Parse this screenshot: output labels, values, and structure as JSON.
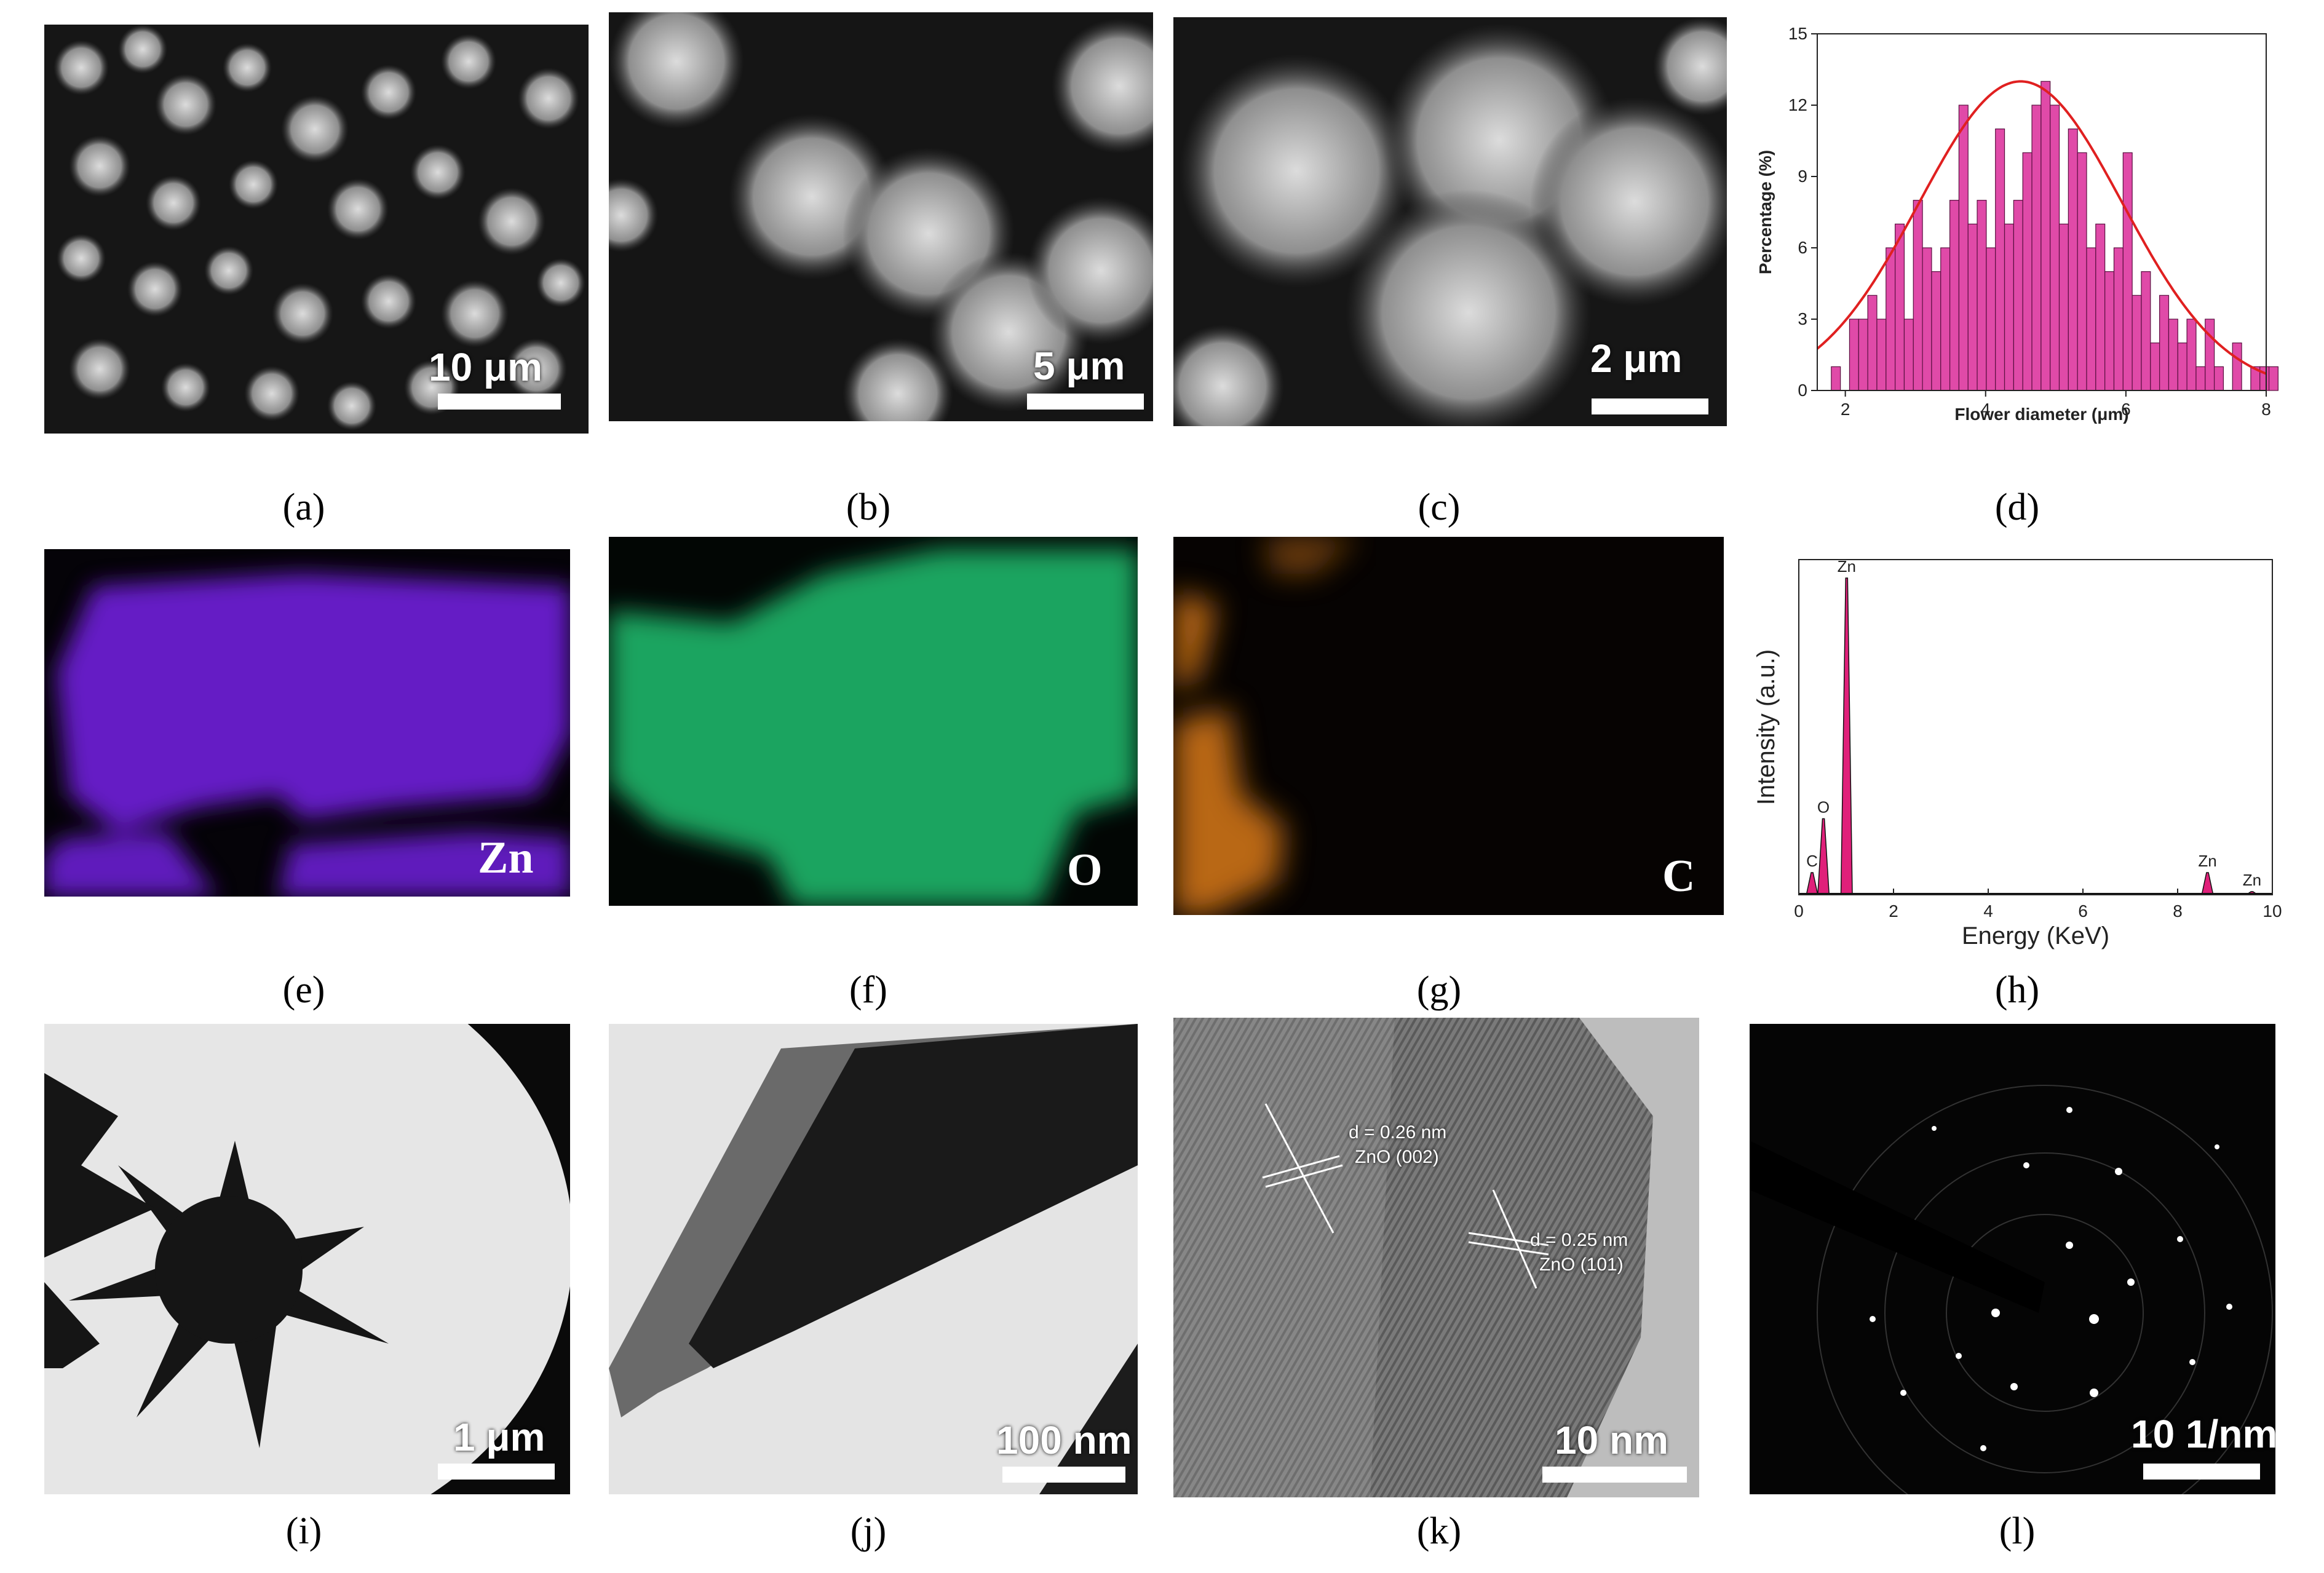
{
  "panels": {
    "a": {
      "caption": "(a)",
      "scale": "10 μm"
    },
    "b": {
      "caption": "(b)",
      "scale": "5 μm"
    },
    "c": {
      "caption": "(c)",
      "scale": "2 μm"
    },
    "d": {
      "caption": "(d)"
    },
    "e": {
      "caption": "(e)",
      "element": "Zn",
      "color": "#6a1fd0"
    },
    "f": {
      "caption": "(f)",
      "element": "O",
      "color": "#1fc070"
    },
    "g": {
      "caption": "(g)",
      "element": "C",
      "color": "#d97a18"
    },
    "h": {
      "caption": "(h)"
    },
    "i": {
      "caption": "(i)",
      "scale": "1 μm"
    },
    "j": {
      "caption": "(j)",
      "scale": "100 nm"
    },
    "k": {
      "caption": "(k)",
      "scale": "10 nm",
      "lattice1": "d = 0.26 nm",
      "plane1": "ZnO (002)",
      "lattice2": "d = 0.25 nm",
      "plane2": "ZnO (101)"
    },
    "l": {
      "caption": "(l)",
      "scale": "10 1/nm"
    }
  },
  "chart_data": [
    {
      "type": "bar",
      "panel": "d",
      "xlabel": "Flower diameter (μm)",
      "ylabel": "Percentage (%)",
      "xlim": [
        1.6,
        8.0
      ],
      "ylim": [
        0,
        15
      ],
      "xticks": [
        2,
        4,
        6,
        8
      ],
      "yticks": [
        0,
        3,
        6,
        9,
        12,
        15
      ],
      "bin_width": 0.13,
      "bin_start": 1.8,
      "values": [
        1,
        0,
        3,
        3,
        4,
        3,
        6,
        7,
        3,
        8,
        6,
        5,
        6,
        8,
        12,
        7,
        8,
        6,
        11,
        7,
        8,
        10,
        12,
        13,
        12,
        7,
        11,
        10,
        6,
        7,
        5,
        6,
        10,
        4,
        5,
        2,
        4,
        3,
        2,
        3,
        1,
        3,
        1,
        0,
        2,
        0,
        1,
        1,
        1
      ],
      "bar_color": "#e04aa8",
      "fit": {
        "type": "gaussian",
        "peak": 13,
        "center": 4.5,
        "sigma": 1.45,
        "color": "#e02020"
      }
    },
    {
      "type": "line",
      "panel": "h",
      "xlabel": "Energy (KeV)",
      "ylabel": "Intensity (a.u.)",
      "xlim": [
        0,
        10
      ],
      "ylim": [
        0,
        100
      ],
      "xticks": [
        0,
        2,
        4,
        6,
        8,
        10
      ],
      "peaks": [
        {
          "label": "C",
          "x": 0.28,
          "height": 7
        },
        {
          "label": "O",
          "x": 0.52,
          "height": 24
        },
        {
          "label": "Zn",
          "x": 1.01,
          "height": 100
        },
        {
          "label": "Zn",
          "x": 8.63,
          "height": 7
        },
        {
          "label": "Zn",
          "x": 9.57,
          "height": 1
        }
      ],
      "fill_color": "#e0207a"
    }
  ]
}
